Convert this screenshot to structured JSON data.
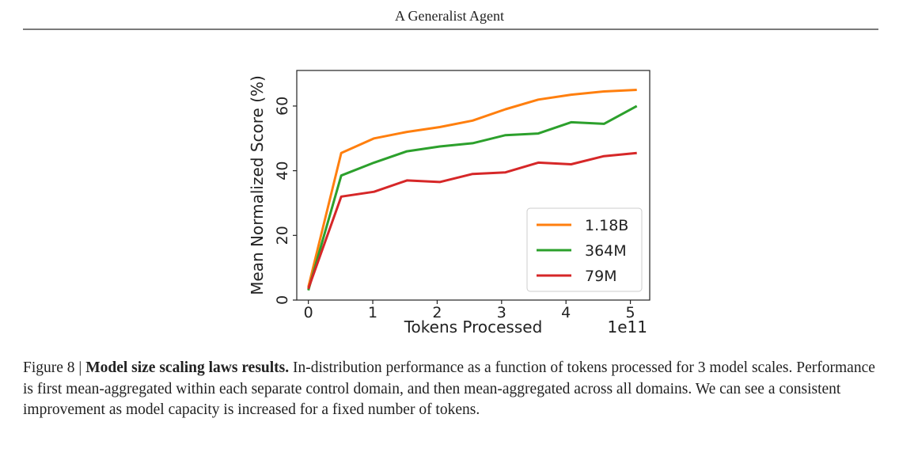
{
  "header": {
    "title": "A Generalist Agent"
  },
  "chart_data": {
    "type": "line",
    "xlabel": "Tokens Processed",
    "ylabel": "Mean Normalized Score (%)",
    "x_offset_text": "1e11",
    "x_ticks": [
      0,
      1,
      2,
      3,
      4,
      5
    ],
    "y_ticks": [
      0,
      20,
      40,
      60
    ],
    "xlim": [
      -0.18,
      5.3
    ],
    "ylim": [
      0,
      71
    ],
    "legend_position": "lower-right",
    "series": [
      {
        "name": "1.18B",
        "color": "#ff7f0e",
        "x": [
          0,
          0.51,
          1.02,
          1.53,
          2.04,
          2.55,
          3.06,
          3.57,
          4.08,
          4.59,
          5.1
        ],
        "y": [
          4,
          45.5,
          50,
          52,
          53.5,
          55.5,
          59,
          62,
          63.5,
          64.5,
          65
        ]
      },
      {
        "name": "364M",
        "color": "#2ca02c",
        "x": [
          0,
          0.51,
          1.02,
          1.53,
          2.04,
          2.55,
          3.06,
          3.57,
          4.08,
          4.59,
          5.1
        ],
        "y": [
          3,
          38.5,
          42.5,
          46,
          47.5,
          48.5,
          51,
          51.5,
          55,
          54.5,
          60
        ]
      },
      {
        "name": "79M",
        "color": "#d62728",
        "x": [
          0,
          0.51,
          1.02,
          1.53,
          2.04,
          2.55,
          3.06,
          3.57,
          4.08,
          4.59,
          5.1
        ],
        "y": [
          3.5,
          32,
          33.5,
          37,
          36.5,
          39,
          39.5,
          42.5,
          42,
          44.5,
          45.5
        ]
      }
    ]
  },
  "caption": {
    "prefix": "Figure 8 | ",
    "bold": "Model size scaling laws results.",
    "body": " In-distribution performance as a function of tokens processed for 3 model scales. Performance is first mean-aggregated within each separate control domain, and then mean-aggregated across all domains. We can see a consistent improvement as model capacity is increased for a fixed number of tokens."
  }
}
